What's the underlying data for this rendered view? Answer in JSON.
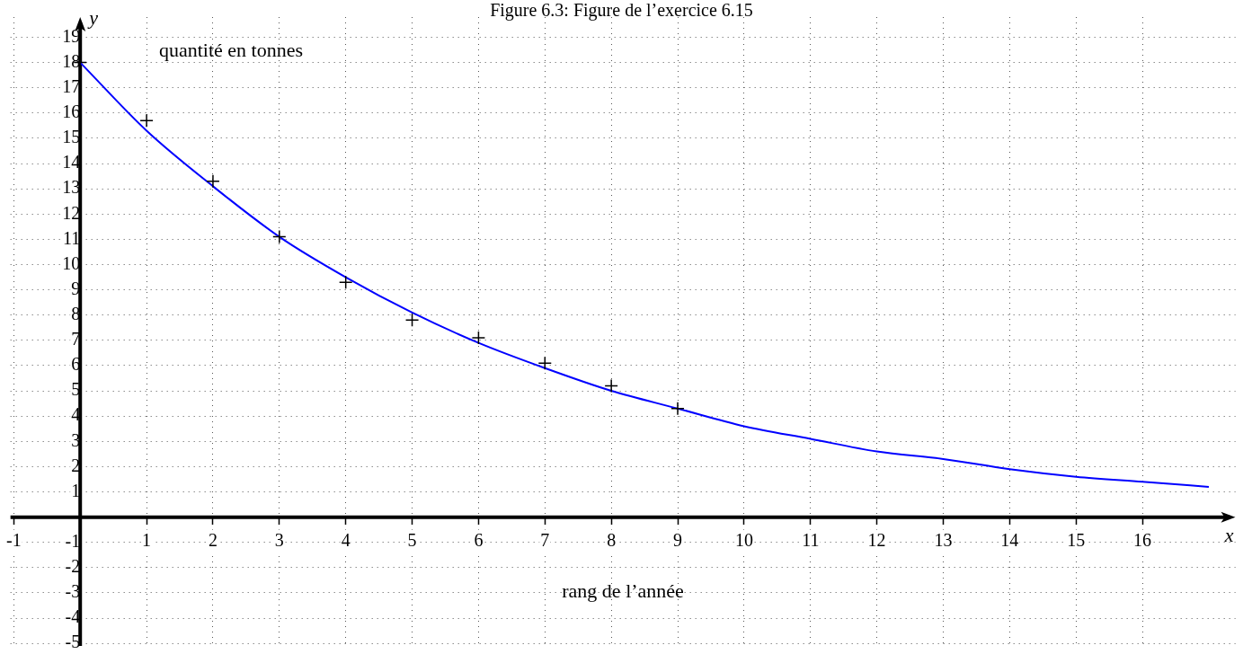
{
  "chart_data": {
    "type": "scatter",
    "title": "Figure 6.3: Figure de l’exercice 6.15",
    "xlabel": "x",
    "ylabel": "y",
    "annotations": [
      "quantité en tonnes",
      "rang de l’année"
    ],
    "series": [
      {
        "type": "line",
        "marker": "none",
        "color": "#0000ff",
        "x": [
          0,
          1,
          2,
          3,
          4,
          5,
          6,
          7,
          8,
          9,
          10,
          11,
          12,
          13,
          14,
          15,
          16,
          17
        ],
        "values": [
          18,
          15.3,
          13.1,
          11.1,
          9.5,
          8.1,
          6.9,
          5.9,
          5.0,
          4.3,
          3.6,
          3.1,
          2.6,
          2.3,
          1.9,
          1.6,
          1.4,
          1.2
        ]
      },
      {
        "color": "#000000",
        "x": [
          0,
          1,
          2,
          3,
          4,
          5,
          6,
          7,
          8,
          9
        ],
        "values": [
          18,
          15.7,
          13.3,
          11.1,
          9.3,
          7.8,
          7.1,
          6.1,
          5.2,
          4.3
        ]
      }
    ],
    "marker": "cross",
    "grid": true,
    "legend": false,
    "xlim": [
      -1.05,
      17.4
    ],
    "xticks": [
      -1,
      1,
      2,
      3,
      4,
      5,
      6,
      7,
      8,
      9,
      10,
      11,
      12,
      13,
      14,
      15,
      16
    ],
    "ylim": [
      -5.1,
      19.8
    ],
    "yticks": [
      -5,
      -4,
      -3,
      -2,
      -1,
      1,
      2,
      3,
      4,
      5,
      6,
      7,
      8,
      9,
      10,
      11,
      12,
      13,
      14,
      15,
      16,
      17,
      18,
      19
    ]
  }
}
